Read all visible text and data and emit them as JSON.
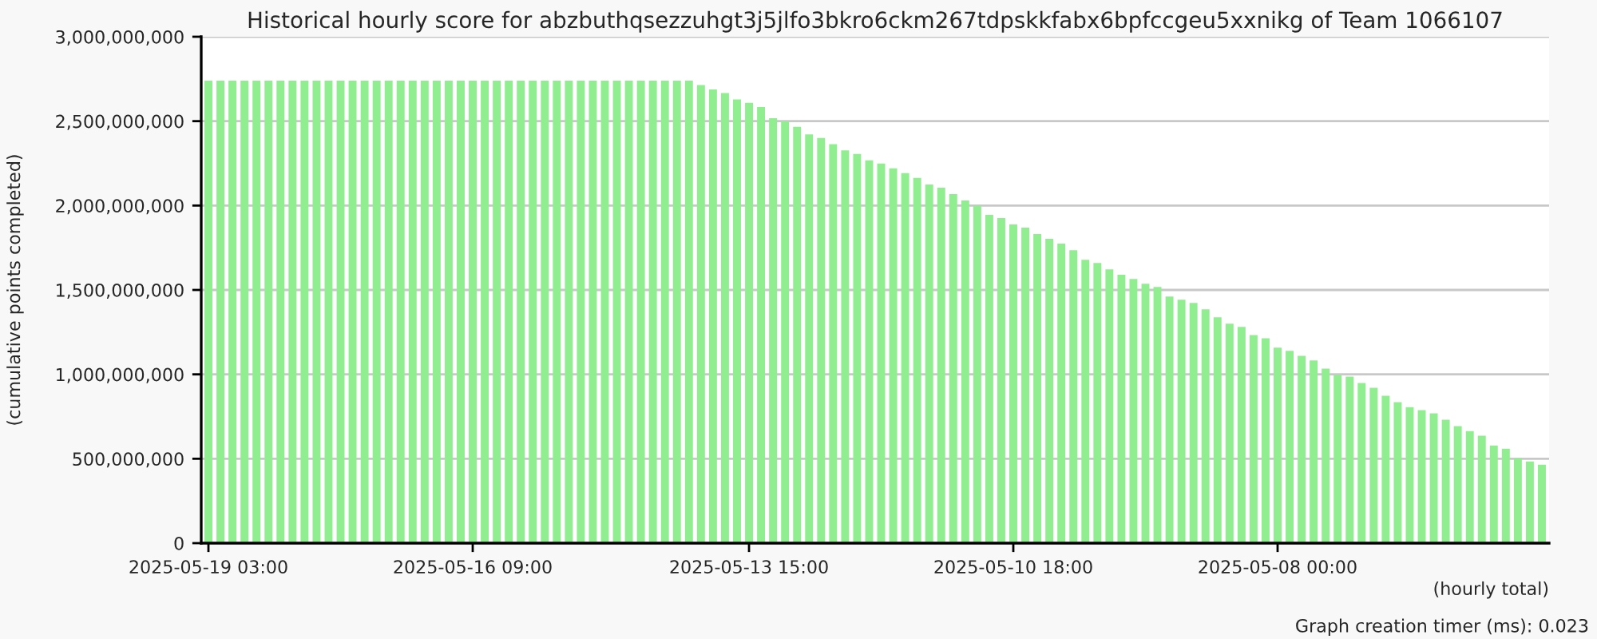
{
  "chart_data": {
    "type": "bar",
    "title": "Historical hourly score for abzbuthqsezzuhgt3j5jlfo3bkro6ckm267tdpskkfabx6bpfccgeu5xxnikg of Team 1066107",
    "ylabel": "(cumulative points completed)",
    "xlabel": "(hourly total)",
    "annotations": [
      "Graph creation timer (ms): 0.023"
    ],
    "categories": [
      "2025-05-19 03:00",
      null,
      null,
      null,
      null,
      null,
      null,
      null,
      null,
      null,
      null,
      null,
      null,
      null,
      null,
      null,
      null,
      null,
      null,
      null,
      null,
      null,
      "2025-05-16 09:00",
      null,
      null,
      null,
      null,
      null,
      null,
      null,
      null,
      null,
      null,
      null,
      null,
      null,
      null,
      null,
      null,
      null,
      null,
      null,
      null,
      null,
      null,
      "2025-05-13 15:00",
      null,
      null,
      null,
      null,
      null,
      null,
      null,
      null,
      null,
      null,
      null,
      null,
      null,
      null,
      null,
      null,
      null,
      null,
      null,
      null,
      null,
      "2025-05-10 18:00",
      null,
      null,
      null,
      null,
      null,
      null,
      null,
      null,
      null,
      null,
      null,
      null,
      null,
      null,
      null,
      null,
      null,
      null,
      null,
      null,
      null,
      "2025-05-08 00:00",
      null,
      null,
      null,
      null,
      null,
      null,
      null,
      null,
      null,
      null,
      null,
      null,
      null,
      null,
      null,
      null,
      null,
      null,
      null,
      null,
      null,
      null
    ],
    "series": [
      {
        "color": "#90ee90",
        "values": [
          2740000000,
          2740000000,
          2740000000,
          2740000000,
          2740000000,
          2740000000,
          2740000000,
          2740000000,
          2740000000,
          2740000000,
          2740000000,
          2740000000,
          2740000000,
          2740000000,
          2740000000,
          2740000000,
          2740000000,
          2740000000,
          2740000000,
          2740000000,
          2740000000,
          2740000000,
          2740000000,
          2740000000,
          2740000000,
          2740000000,
          2740000000,
          2740000000,
          2740000000,
          2740000000,
          2740000000,
          2740000000,
          2740000000,
          2740000000,
          2740000000,
          2740000000,
          2740000000,
          2740000000,
          2740000000,
          2740000000,
          2740000000,
          2714000000,
          2688000000,
          2666000000,
          2628000000,
          2609000000,
          2584000000,
          2517000000,
          2498000000,
          2467000000,
          2422000000,
          2400000000,
          2363000000,
          2327000000,
          2306000000,
          2268000000,
          2249000000,
          2220000000,
          2192000000,
          2164000000,
          2125000000,
          2106000000,
          2068000000,
          2030000000,
          1999000000,
          1945000000,
          1926000000,
          1888000000,
          1869000000,
          1831000000,
          1803000000,
          1774000000,
          1736000000,
          1679000000,
          1660000000,
          1622000000,
          1590000000,
          1565000000,
          1537000000,
          1518000000,
          1461000000,
          1442000000,
          1423000000,
          1385000000,
          1338000000,
          1300000000,
          1281000000,
          1233000000,
          1214000000,
          1158000000,
          1139000000,
          1110000000,
          1082000000,
          1034000000,
          996000000,
          987000000,
          949000000,
          920000000,
          873000000,
          835000000,
          806000000,
          788000000,
          769000000,
          731000000,
          693000000,
          664000000,
          636000000,
          579000000,
          560000000,
          503000000,
          484000000,
          465000000
        ]
      }
    ],
    "ylim": [
      0,
      3000000000
    ],
    "yticks": [
      0,
      {
        "value": 500000000,
        "label": "500,000,000"
      },
      {
        "value": 1000000000,
        "label": "1,000,000,000"
      },
      {
        "value": 1500000000,
        "label": "1,500,000,000"
      },
      {
        "value": 2000000000,
        "label": "2,000,000,000"
      },
      {
        "value": 2500000000,
        "label": "2,500,000,000"
      },
      {
        "value": 3000000000,
        "label": "3,000,000,000"
      }
    ],
    "grid": "y",
    "legend": false
  }
}
